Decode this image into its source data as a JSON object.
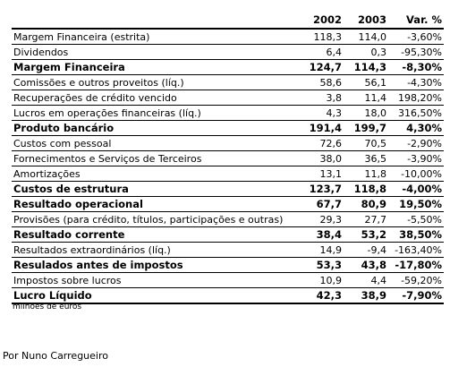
{
  "header": {
    "label": "",
    "col_2002": "2002",
    "col_2003": "2003",
    "col_var": "Var. %"
  },
  "rows": [
    {
      "label": "Margem Financeira (estrita)",
      "v2002": "118,3",
      "v2003": "114,0",
      "var": "-3,60%",
      "bold": false
    },
    {
      "label": "Dividendos",
      "v2002": "6,4",
      "v2003": "0,3",
      "var": "-95,30%",
      "bold": false
    },
    {
      "label": "Margem Financeira",
      "v2002": "124,7",
      "v2003": "114,3",
      "var": "-8,30%",
      "bold": true
    },
    {
      "label": "Comissões e outros proveitos (líq.)",
      "v2002": "58,6",
      "v2003": "56,1",
      "var": "-4,30%",
      "bold": false
    },
    {
      "label": "Recuperações de crédito vencido",
      "v2002": "3,8",
      "v2003": "11,4",
      "var": "198,20%",
      "bold": false
    },
    {
      "label": "Lucros em operações financeiras (líq.)",
      "v2002": "4,3",
      "v2003": "18,0",
      "var": "316,50%",
      "bold": false
    },
    {
      "label": "Produto bancário",
      "v2002": "191,4",
      "v2003": "199,7",
      "var": "4,30%",
      "bold": true
    },
    {
      "label": "Custos com pessoal",
      "v2002": "72,6",
      "v2003": "70,5",
      "var": "-2,90%",
      "bold": false
    },
    {
      "label": "Fornecimentos e Serviços de Terceiros",
      "v2002": "38,0",
      "v2003": "36,5",
      "var": "-3,90%",
      "bold": false
    },
    {
      "label": "Amortizações",
      "v2002": "13,1",
      "v2003": "11,8",
      "var": "-10,00%",
      "bold": false
    },
    {
      "label": "Custos de estrutura",
      "v2002": "123,7",
      "v2003": "118,8",
      "var": "-4,00%",
      "bold": true
    },
    {
      "label": "Resultado operacional",
      "v2002": "67,7",
      "v2003": "80,9",
      "var": "19,50%",
      "bold": true
    },
    {
      "label": "Provisões (para crédito, títulos, participações e outras)",
      "v2002": "29,3",
      "v2003": "27,7",
      "var": "-5,50%",
      "bold": false
    },
    {
      "label": "Resultado corrente",
      "v2002": "38,4",
      "v2003": "53,2",
      "var": "38,50%",
      "bold": true
    },
    {
      "label": "Resultados extraordinários (líq.)",
      "v2002": "14,9",
      "v2003": "-9,4",
      "var": "-163,40%",
      "bold": false
    },
    {
      "label": "Resulados antes de impostos",
      "v2002": "53,3",
      "v2003": "43,8",
      "var": "-17,80%",
      "bold": true
    },
    {
      "label": "Impostos sobre lucros",
      "v2002": "10,9",
      "v2003": "4,4",
      "var": "-59,20%",
      "bold": false
    },
    {
      "label": "Lucro Líquido",
      "v2002": "42,3",
      "v2003": "38,9",
      "var": "-7,90%",
      "bold": true
    }
  ],
  "note": "milhões de euros",
  "author": "Por Nuno Carregueiro"
}
